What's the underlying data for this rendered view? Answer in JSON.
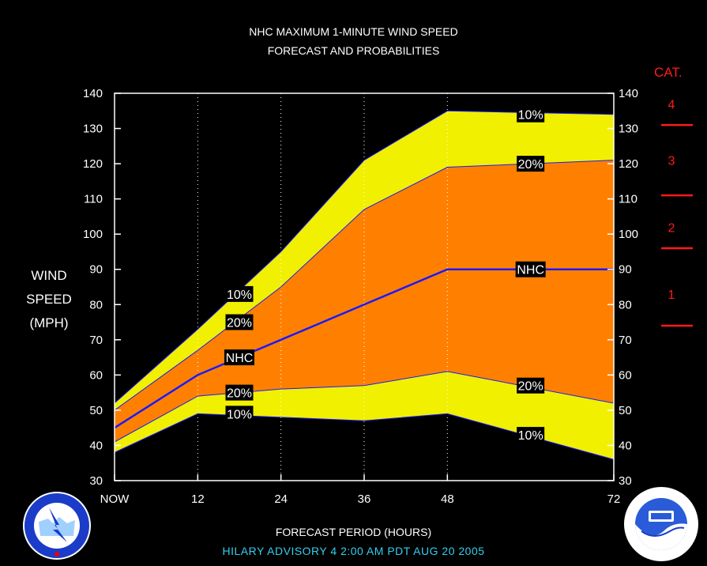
{
  "header": {
    "title_line1": "NHC MAXIMUM 1-MINUTE WIND SPEED",
    "title_line2": "FORECAST AND PROBABILITIES"
  },
  "yaxis": {
    "label_line1": "WIND",
    "label_line2": "SPEED",
    "label_line3": "(MPH)"
  },
  "xaxis": {
    "label": "FORECAST PERIOD (HOURS)"
  },
  "advisory": "HILARY   ADVISORY  4 2:00  AM  PDT  AUG 20  2005",
  "category": {
    "title": "CAT.",
    "color": "#ff1a1a",
    "labels": [
      {
        "label": "1",
        "center": 83
      },
      {
        "label": "2",
        "center": 102
      },
      {
        "label": "3",
        "center": 121
      },
      {
        "label": "4",
        "center": 137
      }
    ],
    "boundaries": [
      74,
      96,
      111,
      131
    ]
  },
  "colors": {
    "outer_band": "#f0f000",
    "inner_band": "#ff8000",
    "nhc_line": "#1a1aff",
    "grid": "#ffffff"
  },
  "chart_data": {
    "type": "area",
    "title": "NHC MAXIMUM 1-MINUTE WIND SPEED FORECAST AND PROBABILITIES",
    "xlabel": "FORECAST PERIOD (HOURS)",
    "ylabel": "WIND SPEED (MPH)",
    "xlim": [
      0,
      72
    ],
    "ylim": [
      30,
      140
    ],
    "x_ticks": [
      0,
      12,
      24,
      36,
      48,
      72
    ],
    "x_tick_labels": [
      "NOW",
      "12",
      "24",
      "36",
      "48",
      "72"
    ],
    "y_ticks": [
      30,
      40,
      50,
      60,
      70,
      80,
      90,
      100,
      110,
      120,
      130,
      140
    ],
    "x": [
      0,
      12,
      24,
      36,
      48,
      72
    ],
    "series": [
      {
        "name": "10%",
        "values": [
          52,
          73,
          95,
          121,
          135,
          134
        ]
      },
      {
        "name": "20%",
        "values": [
          50,
          67,
          85,
          107,
          119,
          121
        ]
      },
      {
        "name": "NHC",
        "values": [
          45,
          60,
          70,
          80,
          90,
          90
        ]
      },
      {
        "name": "20%",
        "values": [
          41,
          54,
          56,
          57,
          61,
          52
        ]
      },
      {
        "name": "10%",
        "values": [
          38,
          49,
          48,
          47,
          49,
          36
        ]
      }
    ],
    "curve_labels": [
      {
        "text": "10%",
        "x": 18,
        "y": 83
      },
      {
        "text": "20%",
        "x": 18,
        "y": 75
      },
      {
        "text": "NHC",
        "x": 18,
        "y": 65
      },
      {
        "text": "20%",
        "x": 18,
        "y": 55
      },
      {
        "text": "10%",
        "x": 18,
        "y": 49
      },
      {
        "text": "10%",
        "x": 60,
        "y": 134
      },
      {
        "text": "20%",
        "x": 60,
        "y": 120
      },
      {
        "text": "NHC",
        "x": 60,
        "y": 90
      },
      {
        "text": "20%",
        "x": 60,
        "y": 57
      },
      {
        "text": "10%",
        "x": 60,
        "y": 43
      }
    ],
    "grid": "vertical dotted"
  }
}
